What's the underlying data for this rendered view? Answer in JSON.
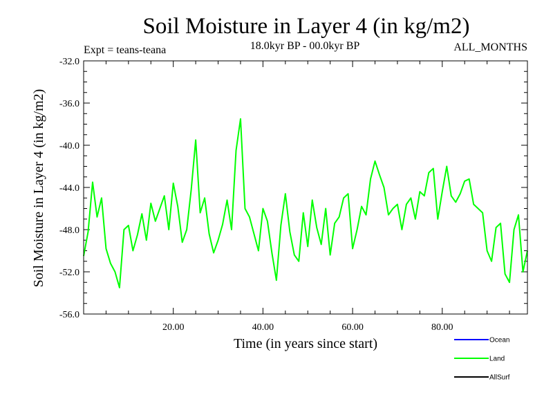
{
  "chart_data": {
    "type": "line",
    "title": "Soil Moisture in Layer 4 (in kg/m2)",
    "subtitle_left": "Expt = teans-teana",
    "subtitle_center": "18.0kyr BP - 00.0kyr BP",
    "subtitle_right": "ALL_MONTHS",
    "xlabel": "Time (in years since start)",
    "ylabel": "Soil Moisture in Layer 4 (in kg/m2)",
    "xlim": [
      0,
      99
    ],
    "ylim": [
      -56,
      -32
    ],
    "x_ticks": [
      20,
      40,
      60,
      80
    ],
    "x_tick_labels": [
      "20.00",
      "40.00",
      "60.00",
      "80.00"
    ],
    "y_ticks": [
      -32,
      -36,
      -40,
      -44,
      -48,
      -52,
      -56
    ],
    "y_tick_labels": [
      "-32.0",
      "-36.0",
      "-40.0",
      "-44.0",
      "-48.0",
      "-52.0",
      "-56.0"
    ],
    "legend": [
      {
        "label": "Ocean",
        "color": "#0000ff"
      },
      {
        "label": "Land",
        "color": "#00ff00"
      },
      {
        "label": "AllSurf",
        "color": "#000000"
      }
    ],
    "series": [
      {
        "name": "Land",
        "color": "#00ff00",
        "x_start": 0,
        "x_step": 1,
        "values": [
          -50.5,
          -48.2,
          -43.5,
          -46.8,
          -45.0,
          -49.8,
          -51.2,
          -52.0,
          -53.5,
          -48.0,
          -47.6,
          -50.0,
          -48.5,
          -46.5,
          -49.0,
          -45.5,
          -47.2,
          -46.0,
          -44.8,
          -48.0,
          -43.6,
          -45.8,
          -49.2,
          -48.0,
          -44.2,
          -39.5,
          -46.4,
          -45.0,
          -48.4,
          -50.2,
          -49.0,
          -47.5,
          -45.2,
          -48.0,
          -40.5,
          -37.5,
          -46.0,
          -46.8,
          -48.4,
          -50.0,
          -46.0,
          -47.2,
          -50.2,
          -52.8,
          -47.6,
          -44.6,
          -48.2,
          -50.4,
          -51.0,
          -46.4,
          -49.6,
          -45.2,
          -47.8,
          -49.4,
          -46.0,
          -50.4,
          -47.4,
          -46.8,
          -45.0,
          -44.6,
          -49.8,
          -48.0,
          -45.8,
          -46.6,
          -43.2,
          -41.5,
          -42.8,
          -44.0,
          -46.6,
          -46.0,
          -45.6,
          -48.0,
          -45.6,
          -45.0,
          -47.0,
          -44.4,
          -44.8,
          -42.6,
          -42.2,
          -47.0,
          -44.4,
          -42.0,
          -44.8,
          -45.4,
          -44.6,
          -43.4,
          -43.2,
          -45.6,
          -46.0,
          -46.4,
          -50.0,
          -51.0,
          -47.8,
          -47.4,
          -52.2,
          -53.0,
          -48.0,
          -46.6,
          -52.0,
          -50.0
        ]
      },
      {
        "name": "Ocean",
        "color": "#0000ff",
        "values": []
      },
      {
        "name": "AllSurf",
        "color": "#000000",
        "values": []
      }
    ]
  }
}
